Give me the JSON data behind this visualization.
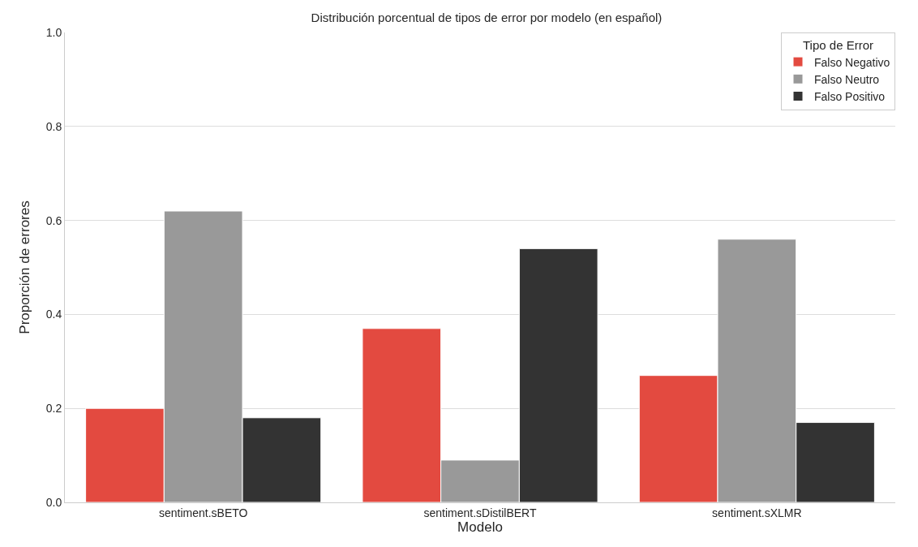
{
  "chart_data": {
    "type": "bar",
    "title": "Distribución porcentual de tipos de error por modelo (en español)",
    "xlabel": "Modelo",
    "ylabel": "Proporción de errores",
    "legend_title": "Tipo de Error",
    "categories": [
      "sentiment.sBETO",
      "sentiment.sDistilBERT",
      "sentiment.sXLMR"
    ],
    "series": [
      {
        "name": "Falso Negativo",
        "color": "#e34a40",
        "values": [
          0.2,
          0.37,
          0.27
        ]
      },
      {
        "name": "Falso Neutro",
        "color": "#999999",
        "values": [
          0.62,
          0.09,
          0.56
        ]
      },
      {
        "name": "Falso Positivo",
        "color": "#333333",
        "values": [
          0.18,
          0.54,
          0.17
        ]
      }
    ],
    "ylim": [
      0,
      1
    ],
    "yticks": [
      {
        "value": 0,
        "label": "0.0"
      },
      {
        "value": 0.2,
        "label": "0.2"
      },
      {
        "value": 0.4,
        "label": "0.4"
      },
      {
        "value": 0.6,
        "label": "0.6"
      },
      {
        "value": 0.8,
        "label": "0.8"
      },
      {
        "value": 1,
        "label": "1.0"
      }
    ],
    "grid": "y",
    "legend": "top right"
  }
}
